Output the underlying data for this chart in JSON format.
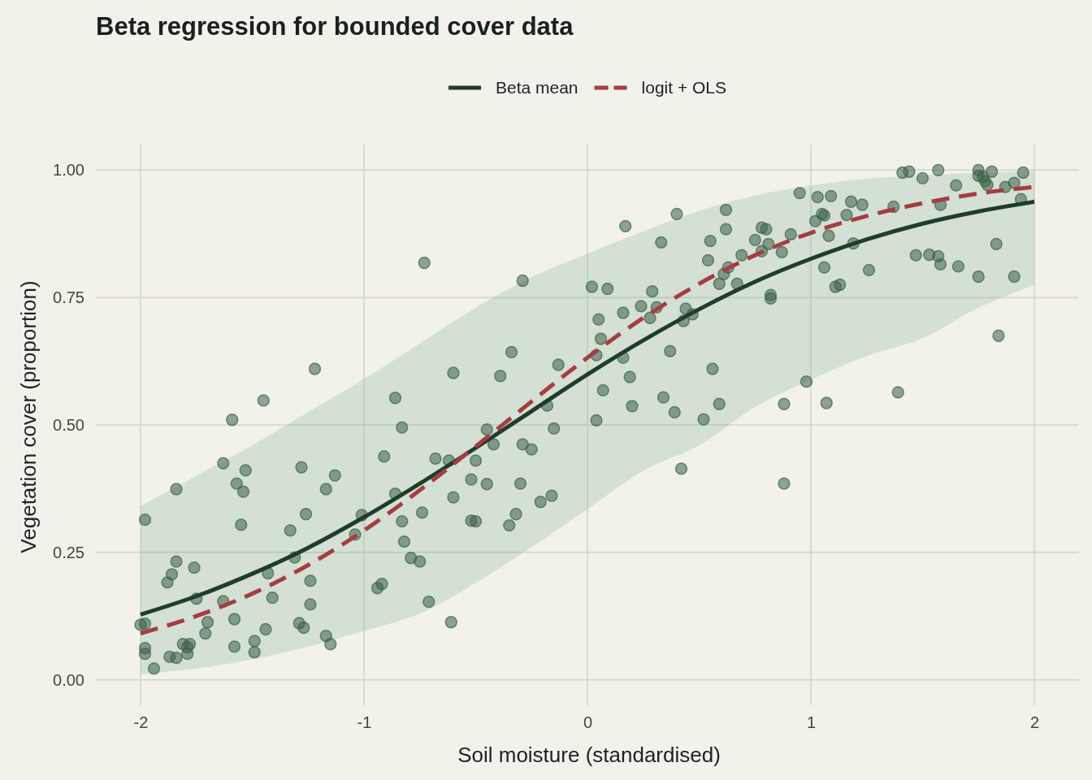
{
  "chart_data": {
    "type": "scatter",
    "title": "Beta regression for bounded cover data",
    "xlabel": "Soil moisture (standardised)",
    "ylabel": "Vegetation cover (proportion)",
    "xlim": [
      -2.2,
      2.2
    ],
    "ylim": [
      -0.05,
      1.05
    ],
    "xticks": [
      -2,
      -1,
      0,
      1,
      2
    ],
    "yticks": [
      {
        "value": 0,
        "label": "0.00"
      },
      {
        "value": 0.25,
        "label": "0.25"
      },
      {
        "value": 0.5,
        "label": "0.50"
      },
      {
        "value": 0.75,
        "label": "0.75"
      },
      {
        "value": 1,
        "label": "1.00"
      }
    ],
    "grid": true,
    "legend": "top",
    "series": [
      {
        "marker": "circle",
        "color": "#3d6148",
        "x": [
          -2.0,
          -1.98,
          -1.98,
          -1.98,
          -1.98,
          -1.94,
          -1.88,
          -1.86,
          -1.87,
          -1.84,
          -1.84,
          -1.84,
          -1.81,
          -1.79,
          -1.78,
          -1.79,
          -1.76,
          -1.75,
          -1.71,
          -1.7,
          -1.63,
          -1.63,
          -1.59,
          -1.58,
          -1.58,
          -1.57,
          -1.55,
          -1.54,
          -1.53,
          -1.49,
          -1.49,
          -1.45,
          -1.44,
          -1.43,
          -1.41,
          -1.33,
          -1.31,
          -1.29,
          -1.28,
          -1.27,
          -1.26,
          -1.24,
          -1.24,
          -1.22,
          -1.17,
          -1.17,
          -1.15,
          -1.13,
          -1.01,
          -1.04,
          -0.94,
          -0.92,
          -0.91,
          -0.86,
          -0.86,
          -0.83,
          -0.83,
          -0.82,
          -0.79,
          -0.75,
          -0.74,
          -0.73,
          -0.71,
          -0.68,
          -0.62,
          -0.61,
          -0.6,
          -0.6,
          -0.52,
          -0.52,
          -0.5,
          -0.5,
          -0.45,
          -0.45,
          -0.42,
          -0.39,
          -0.35,
          -0.34,
          -0.32,
          -0.3,
          -0.29,
          -0.29,
          -0.25,
          -0.21,
          -0.18,
          -0.16,
          -0.15,
          -0.13,
          0.02,
          0.04,
          0.04,
          0.05,
          0.06,
          0.07,
          0.09,
          0.16,
          0.16,
          0.17,
          0.19,
          0.2,
          0.24,
          0.28,
          0.29,
          0.31,
          0.33,
          0.34,
          0.37,
          0.39,
          0.4,
          0.42,
          0.43,
          0.44,
          0.47,
          0.52,
          0.54,
          0.55,
          0.56,
          0.59,
          0.59,
          0.61,
          0.62,
          0.62,
          0.63,
          0.67,
          0.69,
          0.75,
          0.78,
          0.78,
          0.8,
          0.81,
          0.82,
          0.82,
          0.87,
          0.88,
          0.88,
          0.91,
          0.95,
          0.98,
          1.02,
          1.03,
          1.05,
          1.06,
          1.06,
          1.07,
          1.08,
          1.09,
          1.11,
          1.13,
          1.16,
          1.18,
          1.19,
          1.23,
          1.26,
          1.37,
          1.39,
          1.41,
          1.44,
          1.47,
          1.5,
          1.53,
          1.57,
          1.57,
          1.58,
          1.58,
          1.65,
          1.66,
          1.75,
          1.75,
          1.75,
          1.77,
          1.78,
          1.79,
          1.81,
          1.83,
          1.84,
          1.87,
          1.91,
          1.91,
          1.94,
          1.95
        ],
        "values": [
          0.108,
          0.11,
          0.314,
          0.062,
          0.051,
          0.022,
          0.191,
          0.207,
          0.045,
          0.374,
          0.232,
          0.043,
          0.07,
          0.064,
          0.07,
          0.051,
          0.22,
          0.159,
          0.091,
          0.113,
          0.425,
          0.154,
          0.51,
          0.119,
          0.065,
          0.385,
          0.304,
          0.369,
          0.411,
          0.076,
          0.054,
          0.548,
          0.099,
          0.209,
          0.161,
          0.293,
          0.24,
          0.111,
          0.417,
          0.102,
          0.325,
          0.194,
          0.148,
          0.61,
          0.374,
          0.086,
          0.07,
          0.401,
          0.323,
          0.285,
          0.18,
          0.188,
          0.438,
          0.553,
          0.365,
          0.495,
          0.311,
          0.271,
          0.239,
          0.232,
          0.328,
          0.818,
          0.153,
          0.434,
          0.43,
          0.113,
          0.602,
          0.358,
          0.393,
          0.312,
          0.43,
          0.311,
          0.491,
          0.384,
          0.462,
          0.596,
          0.303,
          0.643,
          0.325,
          0.385,
          0.783,
          0.462,
          0.452,
          0.349,
          0.538,
          0.361,
          0.493,
          0.618,
          0.771,
          0.637,
          0.509,
          0.707,
          0.669,
          0.568,
          0.767,
          0.72,
          0.632,
          0.89,
          0.594,
          0.537,
          0.733,
          0.71,
          0.762,
          0.731,
          0.858,
          0.554,
          0.645,
          0.525,
          0.914,
          0.414,
          0.704,
          0.728,
          0.717,
          0.511,
          0.823,
          0.861,
          0.61,
          0.777,
          0.541,
          0.796,
          0.884,
          0.922,
          0.809,
          0.777,
          0.833,
          0.863,
          0.887,
          0.841,
          0.884,
          0.855,
          0.755,
          0.748,
          0.839,
          0.385,
          0.541,
          0.874,
          0.955,
          0.585,
          0.9,
          0.947,
          0.914,
          0.911,
          0.809,
          0.543,
          0.871,
          0.949,
          0.771,
          0.775,
          0.912,
          0.938,
          0.856,
          0.932,
          0.804,
          0.928,
          0.564,
          0.995,
          0.997,
          0.833,
          0.984,
          0.834,
          1.0,
          0.831,
          0.932,
          0.815,
          0.97,
          0.811,
          1.0,
          0.989,
          0.791,
          0.987,
          0.978,
          0.971,
          0.997,
          0.855,
          0.675,
          0.967,
          0.975,
          0.791,
          0.943,
          0.995
        ]
      },
      {
        "type": "line",
        "name": "Beta mean",
        "color": "#1f3d2b",
        "line_style": "solid",
        "x": [
          -2,
          -1.75,
          -1.5,
          -1.25,
          -1,
          -0.75,
          -0.5,
          -0.25,
          0,
          0.25,
          0.5,
          0.75,
          1,
          1.25,
          1.5,
          1.75,
          2
        ],
        "values": [
          0.128,
          0.164,
          0.208,
          0.259,
          0.319,
          0.385,
          0.455,
          0.527,
          0.599,
          0.666,
          0.727,
          0.781,
          0.826,
          0.864,
          0.895,
          0.919,
          0.938
        ],
        "lower": [
          0.011,
          0.022,
          0.04,
          0.065,
          0.096,
          0.13,
          0.19,
          0.26,
          0.335,
          0.41,
          0.46,
          0.535,
          0.589,
          0.635,
          0.67,
          0.73,
          0.775
        ],
        "upper": [
          0.341,
          0.4,
          0.46,
          0.525,
          0.59,
          0.66,
          0.73,
          0.79,
          0.836,
          0.88,
          0.92,
          0.95,
          0.97,
          0.983,
          0.99,
          0.995,
          0.998
        ]
      },
      {
        "type": "line",
        "name": "logit + OLS",
        "color": "#a63d40",
        "line_style": "dashed",
        "x": [
          -2,
          -1.75,
          -1.5,
          -1.25,
          -1,
          -0.75,
          -0.5,
          -0.25,
          0,
          0.25,
          0.5,
          0.75,
          1,
          1.25,
          1.5,
          1.75,
          2
        ],
        "values": [
          0.091,
          0.125,
          0.169,
          0.225,
          0.293,
          0.372,
          0.458,
          0.546,
          0.632,
          0.71,
          0.777,
          0.833,
          0.877,
          0.91,
          0.935,
          0.954,
          0.967
        ]
      }
    ]
  }
}
